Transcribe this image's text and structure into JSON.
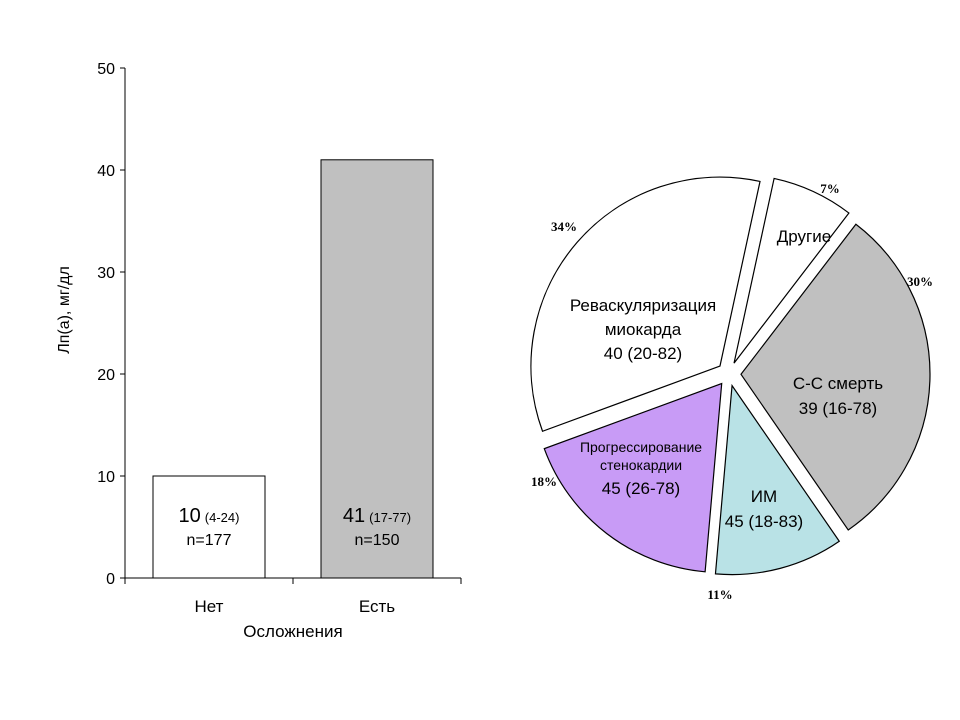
{
  "chart_data": [
    {
      "type": "bar",
      "xlabel": "Осложнения",
      "ylabel": "Лп(а), мг/дл",
      "ylim": [
        0,
        50
      ],
      "yticks": [
        0,
        10,
        20,
        30,
        40,
        50
      ],
      "grid": false,
      "categories": [
        "Нет",
        "Есть"
      ],
      "values": [
        10,
        41
      ],
      "colors": [
        "#ffffff",
        "#c0c0c0"
      ],
      "bar_labels": [
        {
          "value": "10",
          "range": "(4-24)",
          "n": "n=177"
        },
        {
          "value": "41",
          "range": "(17-77)",
          "n": "n=150"
        }
      ]
    },
    {
      "type": "pie",
      "slices": [
        {
          "label_lines": [
            "Реваскуляризация",
            "миокарда",
            "40 (20-82)"
          ],
          "pct": 34,
          "pct_label": "34%",
          "color": "#ffffff"
        },
        {
          "label_lines": [
            "Другие"
          ],
          "pct": 7,
          "pct_label": "7%",
          "color": "#ffffff"
        },
        {
          "label_lines": [
            "С-С смерть",
            "39 (16-78)"
          ],
          "pct": 30,
          "pct_label": "30%",
          "color": "#c0c0c0"
        },
        {
          "label_lines": [
            "ИМ",
            "45 (18-83)"
          ],
          "pct": 11,
          "pct_label": "11%",
          "color": "#b9e2e6"
        },
        {
          "label_lines": [
            "Прогрессирование",
            "стенокардии",
            "45 (26-78)"
          ],
          "pct": 18,
          "pct_label": "18%",
          "color": "#c89bf6"
        }
      ]
    }
  ]
}
